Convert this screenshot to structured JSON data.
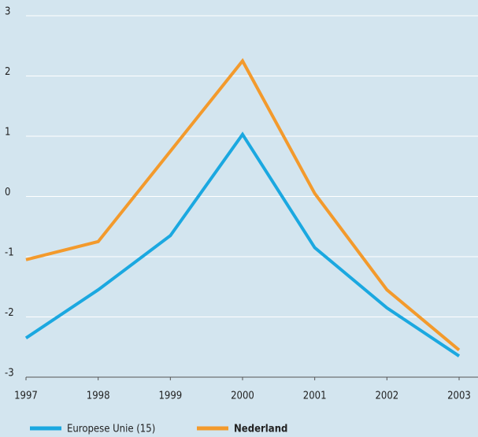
{
  "chart_data": {
    "type": "line",
    "x": [
      1997,
      1998,
      1999,
      2000,
      2001,
      2002,
      2003
    ],
    "xlim": [
      1997,
      2003
    ],
    "xticks": [
      1997,
      1998,
      1999,
      2000,
      2001,
      2002,
      2003
    ],
    "ylim": [
      -3,
      3
    ],
    "yticks": [
      -3,
      -2,
      -1,
      0,
      1,
      2,
      3
    ],
    "grid": true,
    "legend": "bottom",
    "series": [
      {
        "name": "Europese Unie (15)",
        "color": "#1ba8e0",
        "values": [
          -2.35,
          -1.55,
          -0.65,
          1.03,
          -0.85,
          -1.85,
          -2.65
        ]
      },
      {
        "name": "Nederland",
        "color": "#f39a2c",
        "values": [
          -1.05,
          -0.75,
          0.75,
          2.25,
          0.05,
          -1.55,
          -2.55
        ]
      }
    ]
  }
}
